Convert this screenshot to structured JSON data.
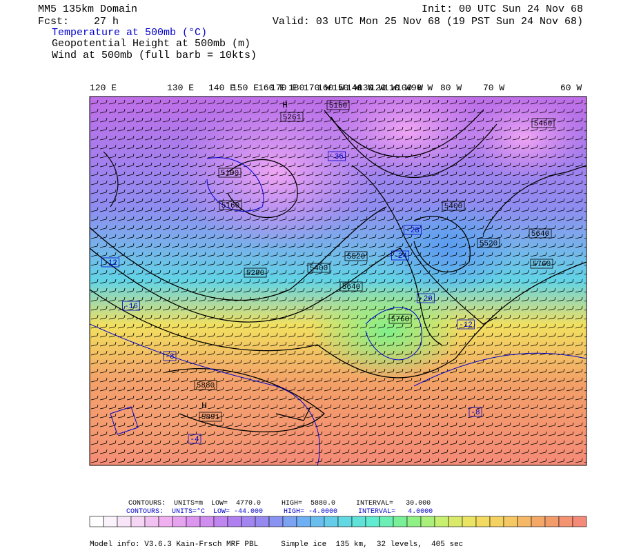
{
  "header": {
    "domain": "MM5 135km Domain",
    "forecast": "Fcst:    27 h",
    "init": "Init: 00 UTC Sun 24 Nov 68",
    "valid": "Valid: 03 UTC Mon 25 Nov 68 (19 PST Sun 24 Nov 68)",
    "fields": [
      "Temperature at 500mb (°C)",
      "Geopotential Height at 500mb (m)",
      "Wind at 500mb (full barb = 10kts)"
    ]
  },
  "longitude_labels": [
    "120 E",
    "130 E",
    "140 E",
    "150 E",
    "160 E",
    "170 E",
    "180",
    "170 W",
    "160 W",
    "150 W",
    "140 W",
    "130 W",
    "120 W",
    "110 W",
    "100 W",
    "90 W",
    "80 W",
    "70 W",
    "60 W"
  ],
  "height_labels": [
    "5160",
    "H",
    "5261",
    "5100",
    "5160",
    "5400",
    "5280",
    "5400",
    "5520",
    "5640",
    "5760",
    "5880",
    "H",
    "5891",
    "5460",
    "5520",
    "5640",
    "5760"
  ],
  "temperature_labels": [
    "-36",
    "-28",
    "-24",
    "-20",
    "-12",
    "-12",
    "-16",
    "-8",
    "-4",
    "-8"
  ],
  "footer": {
    "height_contours": "CONTOURS:  UNITS=m  LOW=  4770.0     HIGH=  5880.0     INTERVAL=   30.000",
    "temperature_contours": "CONTOURS:  UNITS=°C  LOW= -44.000     HIGH= -4.0000     INTERVAL=   4.0000",
    "model_info": "Model info: V3.6.3 Kain-Frsch MRF PBL     Simple ice  135 km,  32 levels,  405 sec"
  }
}
